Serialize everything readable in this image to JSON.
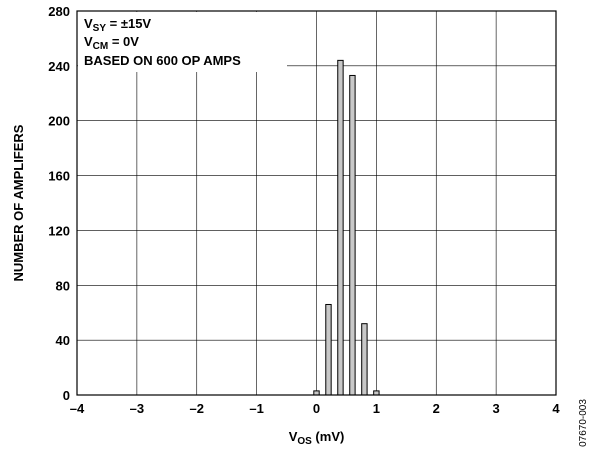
{
  "chart_data": {
    "type": "bar",
    "xlabel": {
      "main": "V",
      "sub": "OS",
      "unit": " (mV)"
    },
    "ylabel": "NUMBER OF AMPLIFERS",
    "xlim": [
      -4,
      4
    ],
    "ylim": [
      0,
      280
    ],
    "xticks": [
      -4,
      -3,
      -2,
      -1,
      0,
      1,
      2,
      3,
      4
    ],
    "xtick_labels": [
      "–4",
      "–3",
      "–2",
      "–1",
      "0",
      "1",
      "2",
      "3",
      "4"
    ],
    "yticks": [
      0,
      40,
      80,
      120,
      160,
      200,
      240,
      280
    ],
    "ytick_labels": [
      "0",
      "40",
      "80",
      "120",
      "160",
      "200",
      "240",
      "280"
    ],
    "grid": true,
    "bar_width": 0.09,
    "x": [
      0.0,
      0.2,
      0.4,
      0.6,
      0.8,
      1.0
    ],
    "values": [
      3,
      66,
      244,
      233,
      52,
      3
    ],
    "annotations": [
      {
        "main": "V",
        "sub": "SY",
        "rest": " = ±15V"
      },
      {
        "main": "V",
        "sub": "CM",
        "rest": " = 0V"
      },
      {
        "main": "BASED ON 600 OP AMPS",
        "sub": "",
        "rest": ""
      }
    ],
    "figure_id": "07670-003"
  }
}
